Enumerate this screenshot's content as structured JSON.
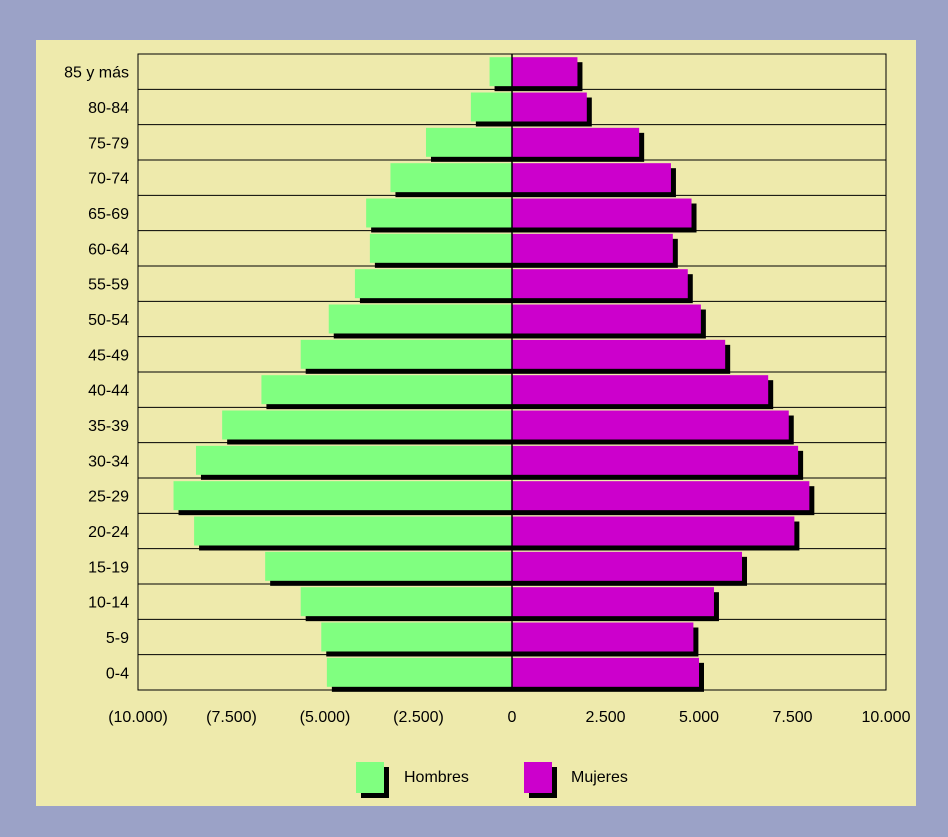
{
  "chart_data": {
    "type": "bar",
    "orientation": "horizontal",
    "categories": [
      "0-4",
      "5-9",
      "10-14",
      "15-19",
      "20-24",
      "25-29",
      "30-34",
      "35-39",
      "40-44",
      "45-49",
      "50-54",
      "55-59",
      "60-64",
      "65-69",
      "70-74",
      "75-79",
      "80-84",
      "85 y más"
    ],
    "series": [
      {
        "name": "Hombres",
        "values": [
          -4950,
          -5100,
          -5650,
          -6600,
          -8500,
          -9050,
          -8450,
          -7750,
          -6700,
          -5650,
          -4900,
          -4200,
          -3800,
          -3900,
          -3250,
          -2300,
          -1100,
          -600
        ]
      },
      {
        "name": "Mujeres",
        "values": [
          5000,
          4850,
          5400,
          6150,
          7550,
          7950,
          7650,
          7400,
          6850,
          5700,
          5050,
          4700,
          4300,
          4800,
          4250,
          3400,
          2000,
          1750
        ]
      }
    ],
    "xlim": [
      -10000,
      10000
    ],
    "xticks": [
      -10000,
      -7500,
      -5000,
      -2500,
      0,
      2500,
      5000,
      7500,
      10000
    ],
    "xtick_labels": [
      "(10.000)",
      "(7.500)",
      "(5.000)",
      "(2.500)",
      "0",
      "2.500",
      "5.000",
      "7.500",
      "10.000"
    ],
    "colors": {
      "Hombres": "#80ff80",
      "Mujeres": "#cc00cc",
      "background": "#eeeaac",
      "frame": "#9ba2c7"
    },
    "legend_position": "bottom",
    "grid": "horizontal",
    "title": "",
    "xlabel": "",
    "ylabel": ""
  }
}
